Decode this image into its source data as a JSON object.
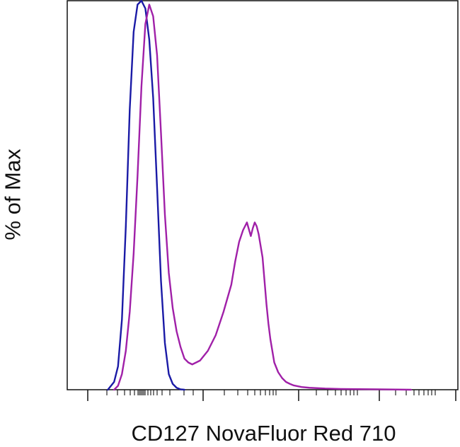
{
  "chart_data": {
    "type": "line",
    "title": "",
    "xlabel": "CD127 NovaFluor Red 710",
    "ylabel": "% of Max",
    "xlim": [
      0,
      100
    ],
    "ylim": [
      0,
      100
    ],
    "grid": false,
    "series": [
      {
        "color": "#1a1aa6",
        "x": [
          10.4,
          12.0,
          13.0,
          14.0,
          15.0,
          16.0,
          17.0,
          18.0,
          19.0,
          20.0,
          21.0,
          22.0,
          23.0,
          24.0,
          25.0,
          26.0,
          27.0,
          28.0,
          29.0,
          30.0
        ],
        "values": [
          0,
          2,
          6,
          18,
          42,
          72,
          92,
          99,
          100,
          98,
          90,
          75,
          52,
          28,
          12,
          4,
          1.5,
          0.5,
          0.1,
          0
        ]
      },
      {
        "color": "#a020a8",
        "x": [
          12.0,
          13.0,
          14.0,
          15.0,
          16.0,
          17.0,
          18.0,
          19.0,
          20.0,
          21.0,
          22.0,
          23.0,
          24.0,
          25.0,
          26.0,
          27.0,
          28.0,
          29.0,
          30.0,
          31.0,
          32.0,
          34.0,
          36.0,
          38.0,
          40.0,
          42.0,
          43.0,
          44.0,
          45.0,
          46.0,
          47.0,
          47.5,
          48.0,
          48.5,
          49.0,
          50.0,
          50.5,
          51.0,
          51.5,
          52.0,
          52.5,
          53.0,
          54.0,
          55.0,
          56.0,
          57.0,
          58.0,
          60.0,
          62.0,
          66.0,
          70.0,
          80.0,
          88.0
        ],
        "values": [
          0,
          1,
          4,
          10,
          20,
          35,
          55,
          78,
          94,
          99,
          96,
          86,
          66,
          45,
          30,
          21,
          15,
          11,
          8,
          7,
          6.5,
          7.5,
          10,
          14,
          20,
          27,
          33,
          38,
          41,
          43,
          39.5,
          41.5,
          43,
          42,
          40,
          34,
          28,
          22,
          17,
          13,
          10,
          7,
          4.5,
          3,
          2,
          1.5,
          1.1,
          0.7,
          0.5,
          0.3,
          0.2,
          0.1,
          0
        ]
      }
    ]
  }
}
